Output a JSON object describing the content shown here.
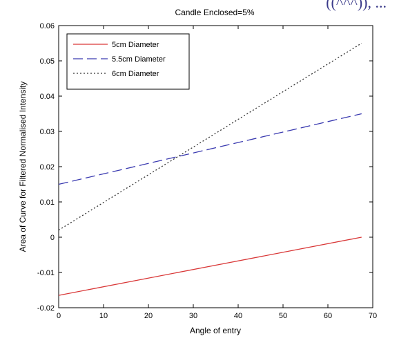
{
  "crop_fragment": "((^^^)), ...",
  "chart_data": {
    "type": "line",
    "title": "Candle Enclosed=5%",
    "xlabel": "Angle of entry",
    "ylabel": "Area of Curve for Filtered Normalised Intensity",
    "xlim": [
      0,
      70
    ],
    "ylim": [
      -0.02,
      0.06
    ],
    "xticks": [
      0,
      10,
      20,
      30,
      40,
      50,
      60,
      70
    ],
    "xtick_labels": [
      "0",
      "10",
      "20",
      "30",
      "40",
      "50",
      "60",
      "70"
    ],
    "yticks": [
      -0.02,
      -0.01,
      0,
      0.01,
      0.02,
      0.03,
      0.04,
      0.05,
      0.06
    ],
    "ytick_labels": [
      "-0.02",
      "-0.01",
      "0",
      "0.01",
      "0.02",
      "0.03",
      "0.04",
      "0.05",
      "0.06"
    ],
    "grid": false,
    "legend_position": "top-left",
    "series": [
      {
        "name": "5cm Diameter",
        "color": "#d93838",
        "style": "solid",
        "x": [
          0,
          67.5
        ],
        "y": [
          -0.0165,
          0.0
        ]
      },
      {
        "name": "5.5cm Diameter",
        "color": "#3a3ab0",
        "style": "dashed",
        "x": [
          0,
          67.5
        ],
        "y": [
          0.015,
          0.035
        ]
      },
      {
        "name": "6cm Diameter",
        "color": "#333333",
        "style": "dotted",
        "x": [
          0,
          67.5
        ],
        "y": [
          0.002,
          0.055
        ]
      }
    ]
  }
}
